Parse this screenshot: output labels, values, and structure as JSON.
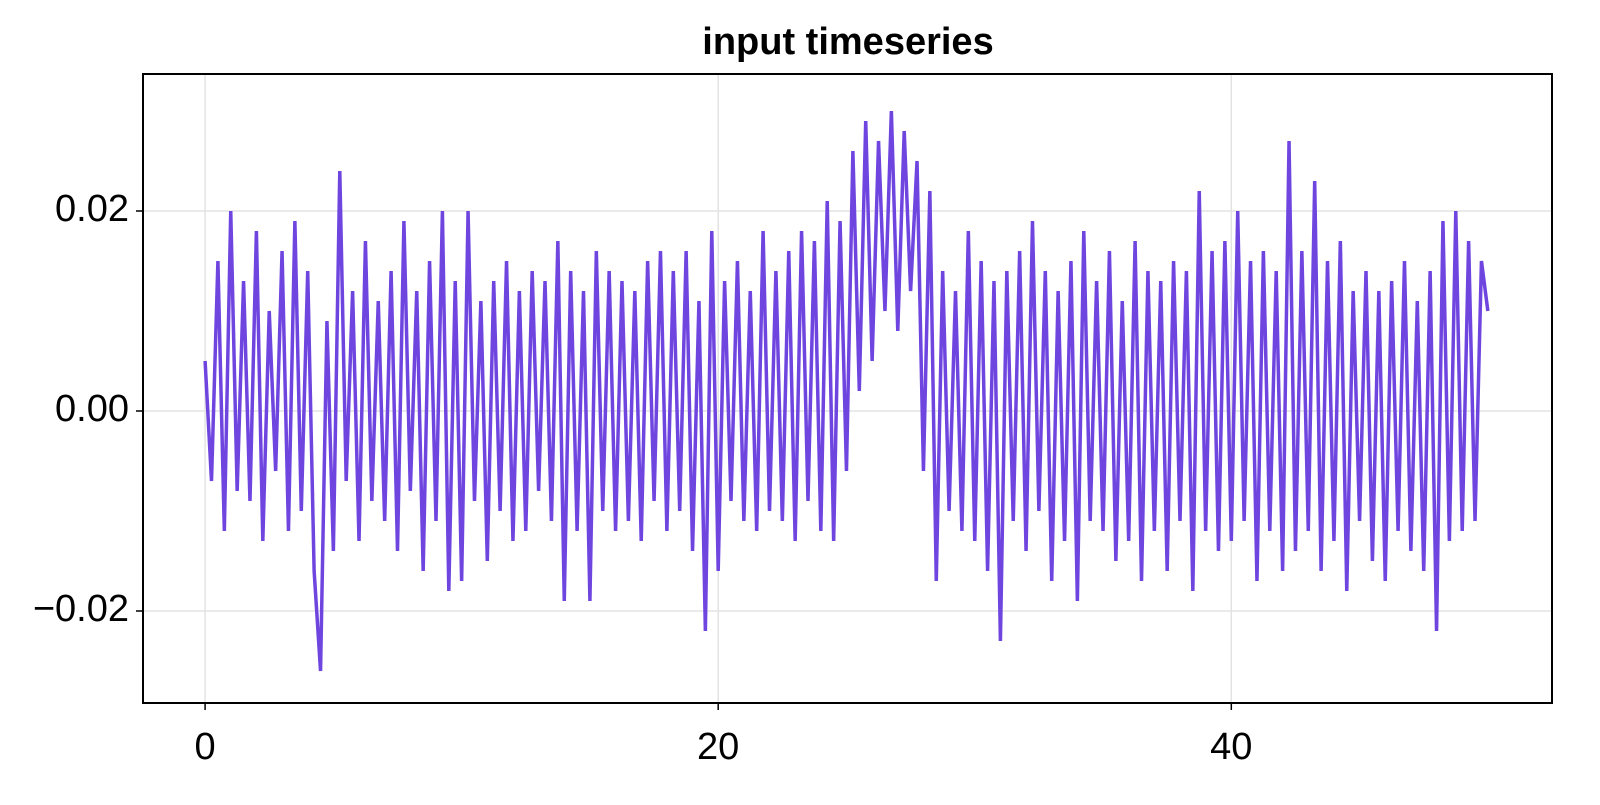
{
  "chart_data": {
    "type": "line",
    "title": "input timeseries",
    "x": [
      0,
      0.25,
      0.5,
      0.75,
      1,
      1.25,
      1.5,
      1.75,
      2,
      2.25,
      2.5,
      2.75,
      3,
      3.25,
      3.5,
      3.75,
      4,
      4.25,
      4.5,
      4.75,
      5,
      5.25,
      5.5,
      5.75,
      6,
      6.25,
      6.5,
      6.75,
      7,
      7.25,
      7.5,
      7.75,
      8,
      8.25,
      8.5,
      8.75,
      9,
      9.25,
      9.5,
      9.75,
      10,
      10.25,
      10.5,
      10.75,
      11,
      11.25,
      11.5,
      11.75,
      12,
      12.25,
      12.5,
      12.75,
      13,
      13.25,
      13.5,
      13.75,
      14,
      14.25,
      14.5,
      14.75,
      15,
      15.25,
      15.5,
      15.75,
      16,
      16.25,
      16.5,
      16.75,
      17,
      17.25,
      17.5,
      17.75,
      18,
      18.25,
      18.5,
      18.75,
      19,
      19.25,
      19.5,
      19.75,
      20,
      20.25,
      20.5,
      20.75,
      21,
      21.25,
      21.5,
      21.75,
      22,
      22.25,
      22.5,
      22.75,
      23,
      23.25,
      23.5,
      23.75,
      24,
      24.25,
      24.5,
      24.75,
      25,
      25.25,
      25.5,
      25.75,
      26,
      26.25,
      26.5,
      26.75,
      27,
      27.25,
      27.5,
      27.75,
      28,
      28.25,
      28.5,
      28.75,
      29,
      29.25,
      29.5,
      29.75,
      30,
      30.25,
      30.5,
      30.75,
      31,
      31.25,
      31.5,
      31.75,
      32,
      32.25,
      32.5,
      32.75,
      33,
      33.25,
      33.5,
      33.75,
      34,
      34.25,
      34.5,
      34.75,
      35,
      35.25,
      35.5,
      35.75,
      36,
      36.25,
      36.5,
      36.75,
      37,
      37.25,
      37.5,
      37.75,
      38,
      38.25,
      38.5,
      38.75,
      39,
      39.25,
      39.5,
      39.75,
      40,
      40.25,
      40.5,
      40.75,
      41,
      41.25,
      41.5,
      41.75,
      42,
      42.25,
      42.5,
      42.75,
      43,
      43.25,
      43.5,
      43.75,
      44,
      44.25,
      44.5,
      44.75,
      45,
      45.25,
      45.5,
      45.75,
      46,
      46.25,
      46.5,
      46.75,
      47,
      47.25,
      47.5,
      47.75,
      48,
      48.25,
      48.5,
      48.75,
      49,
      49.25,
      49.5,
      49.75,
      50
    ],
    "series": [
      {
        "color": "#6f45e0",
        "values": [
          0.005,
          -0.007,
          0.015,
          -0.012,
          0.02,
          -0.008,
          0.013,
          -0.009,
          0.018,
          -0.013,
          0.01,
          -0.006,
          0.016,
          -0.012,
          0.019,
          -0.01,
          0.014,
          -0.016,
          -0.026,
          0.009,
          -0.014,
          0.024,
          -0.007,
          0.012,
          -0.013,
          0.017,
          -0.009,
          0.011,
          -0.011,
          0.014,
          -0.014,
          0.019,
          -0.008,
          0.012,
          -0.016,
          0.015,
          -0.011,
          0.02,
          -0.018,
          0.013,
          -0.017,
          0.02,
          -0.009,
          0.011,
          -0.015,
          0.013,
          -0.01,
          0.015,
          -0.013,
          0.012,
          -0.012,
          0.014,
          -0.008,
          0.013,
          -0.011,
          0.017,
          -0.019,
          0.014,
          -0.012,
          0.012,
          -0.019,
          0.016,
          -0.01,
          0.014,
          -0.012,
          0.013,
          -0.011,
          0.012,
          -0.013,
          0.015,
          -0.009,
          0.016,
          -0.012,
          0.014,
          -0.01,
          0.016,
          -0.014,
          0.011,
          -0.022,
          0.018,
          -0.016,
          0.013,
          -0.009,
          0.015,
          -0.011,
          0.012,
          -0.012,
          0.018,
          -0.01,
          0.014,
          -0.011,
          0.016,
          -0.013,
          0.018,
          -0.009,
          0.017,
          -0.012,
          0.021,
          -0.013,
          0.019,
          -0.006,
          0.026,
          0.002,
          0.029,
          0.005,
          0.027,
          0.01,
          0.03,
          0.008,
          0.028,
          0.012,
          0.025,
          -0.006,
          0.022,
          -0.017,
          0.014,
          -0.01,
          0.012,
          -0.012,
          0.018,
          -0.013,
          0.015,
          -0.016,
          0.013,
          -0.023,
          0.014,
          -0.011,
          0.016,
          -0.014,
          0.019,
          -0.01,
          0.014,
          -0.017,
          0.012,
          -0.013,
          0.015,
          -0.019,
          0.018,
          -0.011,
          0.013,
          -0.012,
          0.016,
          -0.015,
          0.011,
          -0.013,
          0.017,
          -0.017,
          0.014,
          -0.012,
          0.013,
          -0.016,
          0.015,
          -0.011,
          0.014,
          -0.018,
          0.022,
          -0.012,
          0.016,
          -0.014,
          0.017,
          -0.013,
          0.02,
          -0.011,
          0.015,
          -0.017,
          0.016,
          -0.012,
          0.014,
          -0.016,
          0.027,
          -0.014,
          0.016,
          -0.012,
          0.023,
          -0.016,
          0.015,
          -0.013,
          0.017,
          -0.018,
          0.012,
          -0.011,
          0.014,
          -0.015,
          0.012,
          -0.017,
          0.013,
          -0.012,
          0.015,
          -0.014,
          0.011,
          -0.016,
          0.014,
          -0.022,
          0.019,
          -0.013,
          0.02,
          -0.012,
          0.017,
          -0.011,
          0.015,
          0.01
        ]
      }
    ],
    "xlim": [
      -2.42,
      52.5
    ],
    "ylim": [
      -0.0292,
      0.0337
    ],
    "xticks": [
      0,
      20,
      40
    ],
    "yticks": [
      {
        "value": -0.02,
        "label": "−0.02"
      },
      {
        "value": 0,
        "label": "0.00"
      },
      0.02
    ],
    "grid": true
  }
}
